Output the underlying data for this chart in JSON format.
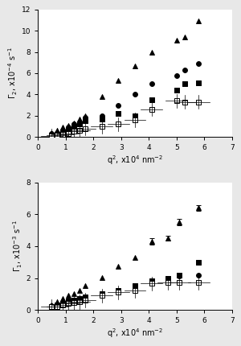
{
  "top": {
    "ylabel": "$\\Gamma_2$, x10$^{-4}$ s$^{-1}$",
    "xlabel": "q$^2$, x10$^4$ nm$^{-2}$",
    "ylim": [
      0,
      12
    ],
    "xlim": [
      0,
      7
    ],
    "yticks": [
      0,
      2,
      4,
      6,
      8,
      10,
      12
    ],
    "xticks": [
      0,
      1,
      2,
      3,
      4,
      5,
      6,
      7
    ],
    "series": {
      "triangle": {
        "x": [
          0.5,
          0.7,
          0.9,
          1.1,
          1.3,
          1.5,
          1.7,
          2.3,
          2.9,
          3.5,
          4.1,
          5.0,
          5.3,
          5.8
        ],
        "y": [
          0.4,
          0.6,
          0.9,
          1.1,
          1.3,
          1.7,
          2.0,
          3.8,
          5.3,
          6.7,
          8.0,
          9.1,
          9.4,
          10.9
        ],
        "marker": "^",
        "color": "black"
      },
      "circle": {
        "x": [
          0.5,
          0.7,
          0.9,
          1.1,
          1.3,
          1.5,
          1.7,
          2.3,
          2.9,
          3.5,
          4.1,
          5.0,
          5.3,
          5.8
        ],
        "y": [
          0.3,
          0.4,
          0.6,
          0.9,
          1.2,
          1.4,
          1.8,
          2.0,
          3.0,
          4.0,
          5.0,
          5.8,
          6.3,
          6.9
        ],
        "marker": "o",
        "color": "black"
      },
      "square": {
        "x": [
          0.5,
          0.7,
          0.9,
          1.1,
          1.3,
          1.5,
          1.7,
          2.3,
          2.9,
          3.5,
          4.1,
          5.0,
          5.3,
          5.8
        ],
        "y": [
          0.15,
          0.25,
          0.4,
          0.7,
          1.0,
          1.2,
          1.5,
          1.7,
          2.2,
          2.0,
          3.5,
          4.4,
          5.0,
          5.1
        ],
        "marker": "s",
        "color": "black"
      },
      "grid_square": {
        "x": [
          0.5,
          0.7,
          0.9,
          1.1,
          1.3,
          1.5,
          1.7,
          2.3,
          2.9,
          3.5,
          4.1,
          5.0,
          5.3,
          5.8
        ],
        "y": [
          0.1,
          0.15,
          0.2,
          0.3,
          0.5,
          0.6,
          0.8,
          1.0,
          1.2,
          1.6,
          2.6,
          3.4,
          3.3,
          3.3
        ],
        "marker": "s",
        "color": "white"
      }
    }
  },
  "bottom": {
    "ylabel": "$\\Gamma_1$, x10$^{-3}$ s$^{-1}$",
    "xlabel": "q$^2$, x10$^4$ nm$^{-2}$",
    "ylim": [
      0,
      8
    ],
    "xlim": [
      0,
      7
    ],
    "yticks": [
      0,
      2,
      4,
      6,
      8
    ],
    "xticks": [
      0,
      1,
      2,
      3,
      4,
      5,
      6,
      7
    ],
    "series": {
      "triangle": {
        "x": [
          0.5,
          0.7,
          0.9,
          1.1,
          1.3,
          1.5,
          1.7,
          2.3,
          2.9,
          3.5,
          4.1,
          4.7,
          5.1,
          5.8
        ],
        "y": [
          0.3,
          0.5,
          0.7,
          0.9,
          1.0,
          1.2,
          1.5,
          2.05,
          2.75,
          3.3,
          4.3,
          4.5,
          5.5,
          6.4
        ],
        "yerr": [
          0,
          0,
          0,
          0,
          0,
          0,
          0,
          0,
          0,
          0,
          0.2,
          0.15,
          0.2,
          0.2
        ],
        "marker": "^",
        "color": "black"
      },
      "circle": {
        "x": [
          0.5,
          0.7,
          0.9,
          1.1,
          1.3,
          1.5,
          1.7,
          2.3,
          2.9,
          3.5,
          4.1,
          4.7,
          5.1,
          5.8
        ],
        "y": [
          0.25,
          0.3,
          0.4,
          0.5,
          0.5,
          0.6,
          0.7,
          0.9,
          1.2,
          1.3,
          1.8,
          2.0,
          2.15,
          2.2
        ],
        "marker": "o",
        "color": "black"
      },
      "square": {
        "x": [
          0.5,
          0.7,
          0.9,
          1.1,
          1.3,
          1.5,
          1.7,
          2.3,
          2.9,
          3.5,
          4.1,
          4.7,
          5.1,
          5.8
        ],
        "y": [
          0.2,
          0.3,
          0.4,
          0.55,
          0.6,
          0.7,
          0.8,
          1.0,
          1.2,
          1.5,
          1.8,
          2.0,
          2.2,
          3.0
        ],
        "marker": "s",
        "color": "black"
      },
      "grid_square": {
        "x": [
          0.5,
          0.7,
          0.9,
          1.1,
          1.3,
          1.5,
          1.7,
          2.3,
          2.9,
          3.5,
          4.1,
          4.7,
          5.1,
          5.8
        ],
        "y": [
          0.2,
          0.2,
          0.3,
          0.4,
          0.45,
          0.5,
          0.6,
          0.9,
          1.1,
          1.2,
          1.65,
          1.7,
          1.7,
          1.7
        ],
        "marker": "s",
        "color": "white"
      }
    }
  },
  "bg_color": "#e8e8e8",
  "marker_size": 18,
  "marker_lw": 0.7,
  "tick_fontsize": 6.5,
  "label_fontsize": 7.0
}
